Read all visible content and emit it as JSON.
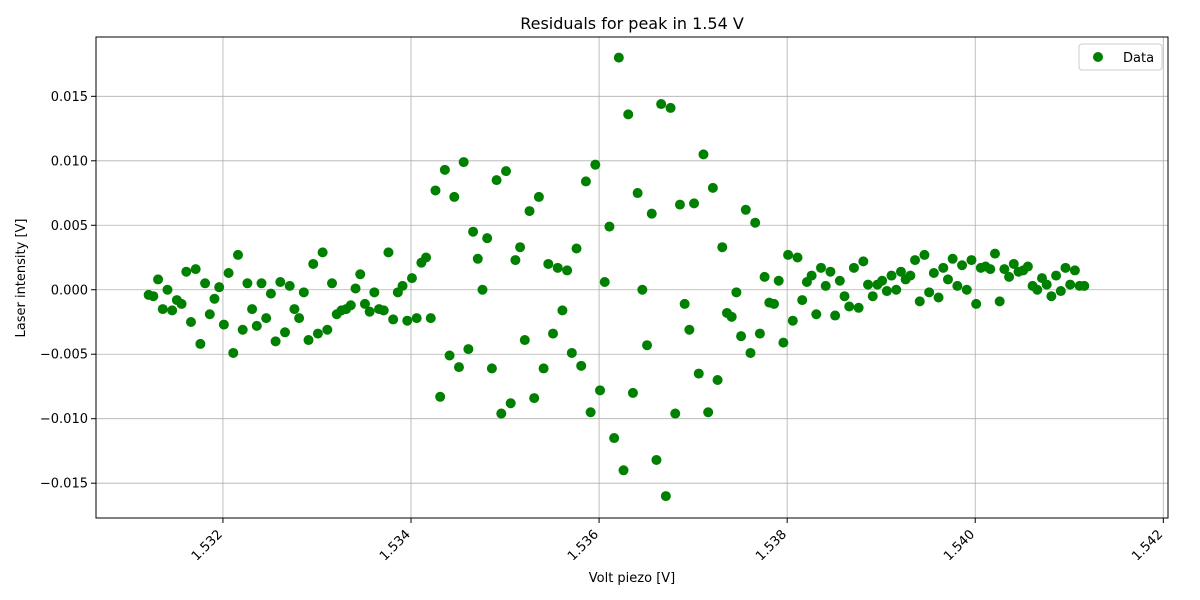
{
  "chart_data": {
    "type": "scatter",
    "title": "Residuals for peak in 1.54 V",
    "xlabel": "Volt piezo [V]",
    "ylabel": "Laser intensity [V]",
    "xlim": [
      1.53065,
      1.54205
    ],
    "ylim": [
      -0.0177,
      0.0196
    ],
    "xticks": [
      1.532,
      1.534,
      1.536,
      1.538,
      1.54,
      1.542
    ],
    "xtick_labels": [
      "1.532",
      "1.534",
      "1.536",
      "1.538",
      "1.540",
      "1.542"
    ],
    "xtick_rotation_deg": 45,
    "yticks": [
      -0.015,
      -0.01,
      -0.005,
      0.0,
      0.005,
      0.01,
      0.015
    ],
    "ytick_labels": [
      "−0.015",
      "−0.010",
      "−0.005",
      "0.000",
      "0.005",
      "0.010",
      "0.015"
    ],
    "grid": true,
    "legend_position": "top-right",
    "series": [
      {
        "name": "Data",
        "color": "#008000",
        "marker": "circle",
        "points": [
          [
            1.53121,
            -0.0004
          ],
          [
            1.53126,
            -0.0005
          ],
          [
            1.53131,
            0.0008
          ],
          [
            1.53136,
            -0.0015
          ],
          [
            1.53141,
            0.0
          ],
          [
            1.53146,
            -0.0016
          ],
          [
            1.53151,
            -0.0008
          ],
          [
            1.53156,
            -0.0011
          ],
          [
            1.53161,
            0.0014
          ],
          [
            1.53166,
            -0.0025
          ],
          [
            1.53171,
            0.0016
          ],
          [
            1.53176,
            -0.0042
          ],
          [
            1.53181,
            0.0005
          ],
          [
            1.53186,
            -0.0019
          ],
          [
            1.53191,
            -0.0007
          ],
          [
            1.53196,
            0.0002
          ],
          [
            1.53201,
            -0.0027
          ],
          [
            1.53206,
            0.0013
          ],
          [
            1.53211,
            -0.0049
          ],
          [
            1.53216,
            0.0027
          ],
          [
            1.53221,
            -0.0031
          ],
          [
            1.53226,
            0.0005
          ],
          [
            1.53231,
            -0.0015
          ],
          [
            1.53236,
            -0.0028
          ],
          [
            1.53241,
            0.0005
          ],
          [
            1.53246,
            -0.0022
          ],
          [
            1.53251,
            -0.0003
          ],
          [
            1.53256,
            -0.004
          ],
          [
            1.53261,
            0.0006
          ],
          [
            1.53266,
            -0.0033
          ],
          [
            1.53271,
            0.0003
          ],
          [
            1.53276,
            -0.0015
          ],
          [
            1.53281,
            -0.0022
          ],
          [
            1.53286,
            -0.0002
          ],
          [
            1.53291,
            -0.0039
          ],
          [
            1.53296,
            0.002
          ],
          [
            1.53301,
            -0.0034
          ],
          [
            1.53306,
            0.0029
          ],
          [
            1.53311,
            -0.0031
          ],
          [
            1.53316,
            0.0005
          ],
          [
            1.53321,
            -0.0019
          ],
          [
            1.53326,
            -0.0016
          ],
          [
            1.53331,
            -0.0015
          ],
          [
            1.53336,
            -0.0012
          ],
          [
            1.53341,
            0.0001
          ],
          [
            1.53346,
            0.0012
          ],
          [
            1.53351,
            -0.0011
          ],
          [
            1.53356,
            -0.0017
          ],
          [
            1.53361,
            -0.0002
          ],
          [
            1.53366,
            -0.0015
          ],
          [
            1.53371,
            -0.0016
          ],
          [
            1.53376,
            0.0029
          ],
          [
            1.53381,
            -0.0023
          ],
          [
            1.53386,
            -0.0002
          ],
          [
            1.53391,
            0.0003
          ],
          [
            1.53396,
            -0.0024
          ],
          [
            1.53401,
            0.0009
          ],
          [
            1.53406,
            -0.0022
          ],
          [
            1.53411,
            0.0021
          ],
          [
            1.53416,
            0.0025
          ],
          [
            1.53421,
            -0.0022
          ],
          [
            1.53426,
            0.0077
          ],
          [
            1.53431,
            -0.0083
          ],
          [
            1.53436,
            0.0093
          ],
          [
            1.53441,
            -0.0051
          ],
          [
            1.53446,
            0.0072
          ],
          [
            1.53451,
            -0.006
          ],
          [
            1.53456,
            0.0099
          ],
          [
            1.53461,
            -0.0046
          ],
          [
            1.53466,
            0.0045
          ],
          [
            1.53471,
            0.0024
          ],
          [
            1.53476,
            0.0
          ],
          [
            1.53481,
            0.004
          ],
          [
            1.53486,
            -0.0061
          ],
          [
            1.53491,
            0.0085
          ],
          [
            1.53496,
            -0.0096
          ],
          [
            1.53501,
            0.0092
          ],
          [
            1.53506,
            -0.0088
          ],
          [
            1.53511,
            0.0023
          ],
          [
            1.53516,
            0.0033
          ],
          [
            1.53521,
            -0.0039
          ],
          [
            1.53526,
            0.0061
          ],
          [
            1.53531,
            -0.0084
          ],
          [
            1.53536,
            0.0072
          ],
          [
            1.53541,
            -0.0061
          ],
          [
            1.53546,
            0.002
          ],
          [
            1.53551,
            -0.0034
          ],
          [
            1.53556,
            0.0017
          ],
          [
            1.53561,
            -0.0016
          ],
          [
            1.53566,
            0.0015
          ],
          [
            1.53571,
            -0.0049
          ],
          [
            1.53576,
            0.0032
          ],
          [
            1.53581,
            -0.0059
          ],
          [
            1.53586,
            0.0084
          ],
          [
            1.53591,
            -0.0095
          ],
          [
            1.53596,
            0.0097
          ],
          [
            1.53601,
            -0.0078
          ],
          [
            1.53606,
            0.0006
          ],
          [
            1.53611,
            0.0049
          ],
          [
            1.53616,
            -0.0115
          ],
          [
            1.53621,
            0.018
          ],
          [
            1.53626,
            -0.014
          ],
          [
            1.53631,
            0.0136
          ],
          [
            1.53636,
            -0.008
          ],
          [
            1.53641,
            0.0075
          ],
          [
            1.53646,
            0.0
          ],
          [
            1.53651,
            -0.0043
          ],
          [
            1.53656,
            0.0059
          ],
          [
            1.53661,
            -0.0132
          ],
          [
            1.53666,
            0.0144
          ],
          [
            1.53671,
            -0.016
          ],
          [
            1.53676,
            0.0141
          ],
          [
            1.53681,
            -0.0096
          ],
          [
            1.53686,
            0.0066
          ],
          [
            1.53691,
            -0.0011
          ],
          [
            1.53696,
            -0.0031
          ],
          [
            1.53701,
            0.0067
          ],
          [
            1.53706,
            -0.0065
          ],
          [
            1.53711,
            0.0105
          ],
          [
            1.53716,
            -0.0095
          ],
          [
            1.53721,
            0.0079
          ],
          [
            1.53726,
            -0.007
          ],
          [
            1.53731,
            0.0033
          ],
          [
            1.53736,
            -0.0018
          ],
          [
            1.53741,
            -0.0021
          ],
          [
            1.53746,
            -0.0002
          ],
          [
            1.53751,
            -0.0036
          ],
          [
            1.53756,
            0.0062
          ],
          [
            1.53761,
            -0.0049
          ],
          [
            1.53766,
            0.0052
          ],
          [
            1.53771,
            -0.0034
          ],
          [
            1.53776,
            0.001
          ],
          [
            1.53781,
            -0.001
          ],
          [
            1.53786,
            -0.0011
          ],
          [
            1.53791,
            0.0007
          ],
          [
            1.53796,
            -0.0041
          ],
          [
            1.53801,
            0.0027
          ],
          [
            1.53806,
            -0.0024
          ],
          [
            1.53811,
            0.0025
          ],
          [
            1.53816,
            -0.0008
          ],
          [
            1.53821,
            0.0006
          ],
          [
            1.53826,
            0.0011
          ],
          [
            1.53831,
            -0.0019
          ],
          [
            1.53836,
            0.0017
          ],
          [
            1.53841,
            0.0003
          ],
          [
            1.53846,
            0.0014
          ],
          [
            1.53851,
            -0.002
          ],
          [
            1.53856,
            0.0007
          ],
          [
            1.53861,
            -0.0005
          ],
          [
            1.53866,
            -0.0013
          ],
          [
            1.53871,
            0.0017
          ],
          [
            1.53876,
            -0.0014
          ],
          [
            1.53881,
            0.0022
          ],
          [
            1.53886,
            0.0004
          ],
          [
            1.53891,
            -0.0005
          ],
          [
            1.53896,
            0.0004
          ],
          [
            1.53901,
            0.0007
          ],
          [
            1.53906,
            -0.0001
          ],
          [
            1.53911,
            0.0011
          ],
          [
            1.53916,
            0.0
          ],
          [
            1.53921,
            0.0014
          ],
          [
            1.53926,
            0.0008
          ],
          [
            1.53931,
            0.0011
          ],
          [
            1.53936,
            0.0023
          ],
          [
            1.53941,
            -0.0009
          ],
          [
            1.53946,
            0.0027
          ],
          [
            1.53951,
            -0.0002
          ],
          [
            1.53956,
            0.0013
          ],
          [
            1.53961,
            -0.0006
          ],
          [
            1.53966,
            0.0017
          ],
          [
            1.53971,
            0.0008
          ],
          [
            1.53976,
            0.0024
          ],
          [
            1.53981,
            0.0003
          ],
          [
            1.53986,
            0.0019
          ],
          [
            1.53991,
            0.0
          ],
          [
            1.53996,
            0.0023
          ],
          [
            1.54001,
            -0.0011
          ],
          [
            1.54006,
            0.0017
          ],
          [
            1.54011,
            0.0018
          ],
          [
            1.54016,
            0.0016
          ],
          [
            1.54021,
            0.0028
          ],
          [
            1.54026,
            -0.0009
          ],
          [
            1.54031,
            0.0016
          ],
          [
            1.54036,
            0.001
          ],
          [
            1.54041,
            0.002
          ],
          [
            1.54046,
            0.0014
          ],
          [
            1.54051,
            0.0015
          ],
          [
            1.54056,
            0.0018
          ],
          [
            1.54061,
            0.0003
          ],
          [
            1.54066,
            0.0
          ],
          [
            1.54071,
            0.0009
          ],
          [
            1.54076,
            0.0004
          ],
          [
            1.54081,
            -0.0005
          ],
          [
            1.54086,
            0.0011
          ],
          [
            1.54091,
            -0.0001
          ],
          [
            1.54096,
            0.0017
          ],
          [
            1.54101,
            0.0004
          ],
          [
            1.54106,
            0.0015
          ],
          [
            1.54111,
            0.0003
          ],
          [
            1.54116,
            0.0003
          ]
        ]
      }
    ]
  }
}
